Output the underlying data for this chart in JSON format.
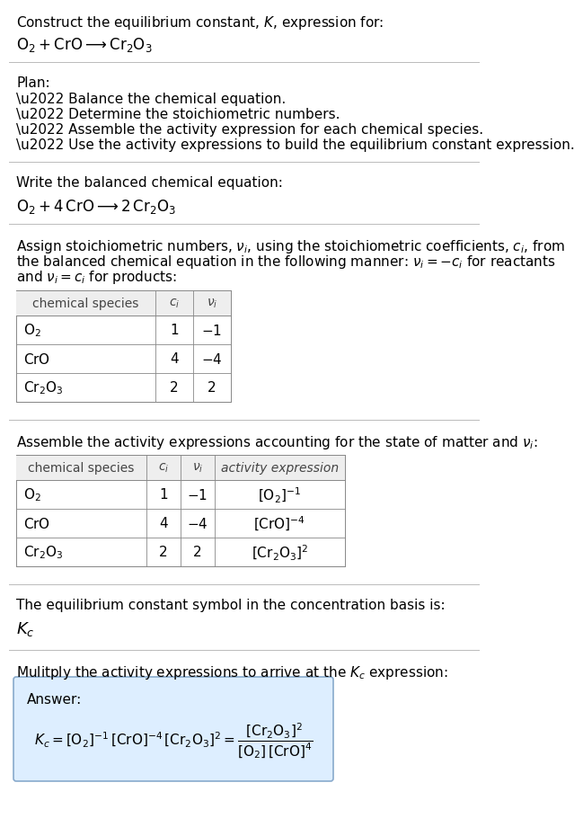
{
  "bg_color": "#ffffff",
  "text_color": "#000000",
  "answer_bg_color": "#ddeeff",
  "answer_border_color": "#88aacc",
  "sections": {
    "title_line1": "Construct the equilibrium constant, $K$, expression for:",
    "title_line2": "$\\mathrm{O_2 + CrO} \\longrightarrow \\mathrm{Cr_2O_3}$",
    "plan_header": "Plan:",
    "plan_bullets": [
      "\\u2022 Balance the chemical equation.",
      "\\u2022 Determine the stoichiometric numbers.",
      "\\u2022 Assemble the activity expression for each chemical species.",
      "\\u2022 Use the activity expressions to build the equilibrium constant expression."
    ],
    "balanced_header": "Write the balanced chemical equation:",
    "balanced_eq": "$\\mathrm{O_2 + 4\\,CrO} \\longrightarrow \\mathrm{2\\,Cr_2O_3}$",
    "stoich_lines": [
      "Assign stoichiometric numbers, $\\nu_i$, using the stoichiometric coefficients, $c_i$, from",
      "the balanced chemical equation in the following manner: $\\nu_i = -c_i$ for reactants",
      "and $\\nu_i = c_i$ for products:"
    ],
    "table1_header": [
      "chemical species",
      "$c_i$",
      "$\\nu_i$"
    ],
    "table1_rows": [
      [
        "$\\mathrm{O_2}$",
        "1",
        "$-1$"
      ],
      [
        "$\\mathrm{CrO}$",
        "4",
        "$-4$"
      ],
      [
        "$\\mathrm{Cr_2O_3}$",
        "2",
        "2"
      ]
    ],
    "activity_header": "Assemble the activity expressions accounting for the state of matter and $\\nu_i$:",
    "table2_header": [
      "chemical species",
      "$c_i$",
      "$\\nu_i$",
      "activity expression"
    ],
    "table2_rows": [
      [
        "$\\mathrm{O_2}$",
        "1",
        "$-1$",
        "$[\\mathrm{O_2}]^{-1}$"
      ],
      [
        "$\\mathrm{CrO}$",
        "4",
        "$-4$",
        "$[\\mathrm{CrO}]^{-4}$"
      ],
      [
        "$\\mathrm{Cr_2O_3}$",
        "2",
        "2",
        "$[\\mathrm{Cr_2O_3}]^{2}$"
      ]
    ],
    "kc_header": "The equilibrium constant symbol in the concentration basis is:",
    "kc_symbol": "$K_c$",
    "multiply_header": "Mulitply the activity expressions to arrive at the $K_c$ expression:",
    "answer_label": "Answer:",
    "answer_eq_line1": "$K_c = [\\mathrm{O_2}]^{-1}\\,[\\mathrm{CrO}]^{-4}\\,[\\mathrm{Cr_2O_3}]^{2} = \\dfrac{[\\mathrm{Cr_2O_3}]^{2}}{[\\mathrm{O_2}]\\,[\\mathrm{CrO}]^{4}}$"
  },
  "font_size": 11
}
